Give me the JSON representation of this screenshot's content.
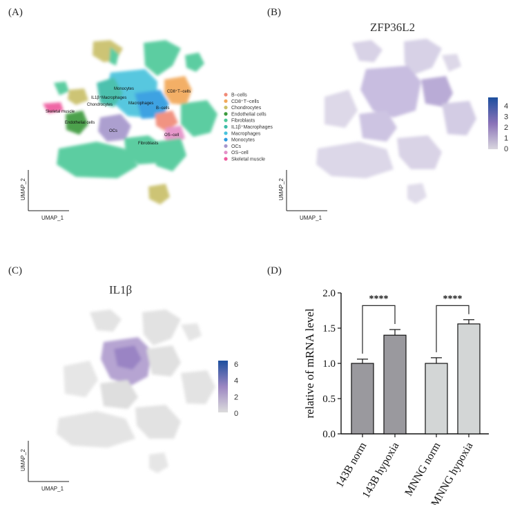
{
  "panels": {
    "a_label": "(A)",
    "b_label": "(B)",
    "c_label": "(C)",
    "d_label": "(D)",
    "b_title": "ZFP36L2",
    "c_title": "IL1β"
  },
  "umap_axes": {
    "x": "UMAP_1",
    "y": "UMAP_2"
  },
  "clusters": [
    {
      "name": "B−cells",
      "color": "#f08a77"
    },
    {
      "name": "CD8⁺T−cells",
      "color": "#f2a95a"
    },
    {
      "name": "Chondrocytes",
      "color": "#c9c06a"
    },
    {
      "name": "Endothelial cells",
      "color": "#3c9a3c"
    },
    {
      "name": "Fibroblasts",
      "color": "#4fc99a"
    },
    {
      "name": "IL1β⁺Macrophages",
      "color": "#3dbca8"
    },
    {
      "name": "Macrophages",
      "color": "#49c3dd"
    },
    {
      "name": "Monocytes",
      "color": "#2d9be0"
    },
    {
      "name": "OCs",
      "color": "#a697cc"
    },
    {
      "name": "OS−cell",
      "color": "#e48fc7"
    },
    {
      "name": "Skeletal muscle",
      "color": "#ee5a9e"
    }
  ],
  "cluster_labels": {
    "monocytes": "Monocytes",
    "il1b_macrophages": "IL1β⁺Macrophages",
    "chondrocytes": "Chondrocytes",
    "macrophages": "Macrophages",
    "cd8": "CD8⁺T−cells",
    "bcells": "B−cells",
    "skeletal": "Skeletal muscle",
    "endothelial": "Endothelial cells",
    "ocs": "OCs",
    "oscell": "OS−cell",
    "fibroblasts": "Fibroblasts"
  },
  "scale_b": {
    "ticks": [
      "4",
      "3",
      "2",
      "1",
      "0"
    ],
    "max_color": "#1d4f9e",
    "mid_color": "#7b5fb0",
    "min_color": "#d9d6de"
  },
  "scale_c": {
    "ticks": [
      "6",
      "4",
      "2",
      "0"
    ],
    "max_color": "#1d4f9e",
    "mid_color": "#8a72b8",
    "min_color": "#dcdcdc"
  },
  "chart_data": {
    "type": "bar",
    "categories": [
      "143B  norm",
      "143B  hypoxia",
      "MNNG  norm",
      "MNNG hypoxia"
    ],
    "values": [
      1.0,
      1.4,
      1.0,
      1.56
    ],
    "errors": [
      0.06,
      0.08,
      0.08,
      0.06
    ],
    "colors": [
      "#9a999e",
      "#9a999e",
      "#d3d6d6",
      "#d3d6d6"
    ],
    "ylabel": "relative of mRNA level",
    "ylim": [
      0,
      2.0
    ],
    "yticks": [
      "0.0",
      "0.5",
      "1.0",
      "1.5",
      "2.0"
    ],
    "significance": [
      "****",
      "****"
    ]
  }
}
